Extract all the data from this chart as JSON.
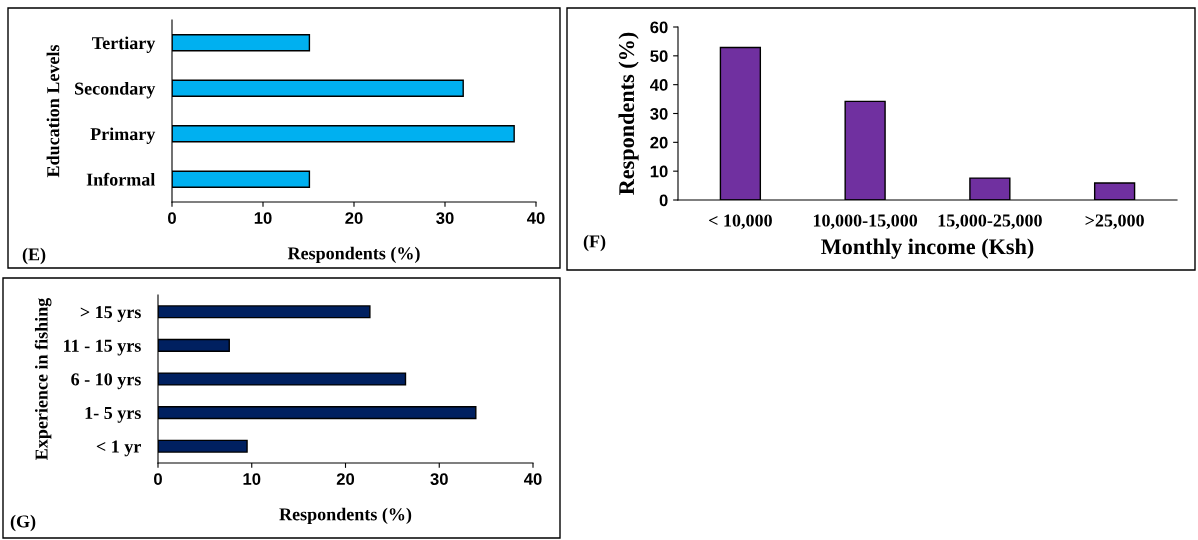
{
  "chart_data": [
    {
      "type": "bar",
      "orientation": "horizontal",
      "categories": [
        "Tertiary",
        "Secondary",
        "Primary",
        "Informal"
      ],
      "values": [
        15.1,
        32.0,
        37.6,
        15.1
      ],
      "color": "#00b0f0",
      "xlim": [
        0,
        40
      ],
      "xticks": [
        0,
        10,
        20,
        30,
        40
      ],
      "xlabel": "Respondents (%)",
      "ylabel": "Education Levels",
      "annotations": [
        "(E)"
      ],
      "grid": false,
      "legend": false
    },
    {
      "type": "bar",
      "categories": [
        "< 10,000",
        "10,000-15,000",
        "15,000-25,000",
        ">25,000"
      ],
      "values": [
        52.9,
        34.2,
        7.6,
        5.9
      ],
      "color": "#7030a0",
      "ylim": [
        0,
        60
      ],
      "yticks": [
        0,
        10,
        20,
        30,
        40,
        50,
        60
      ],
      "xlabel": "Monthly income (Ksh)",
      "ylabel": "Respondents (%)",
      "annotations": [
        "(F)"
      ],
      "grid": false,
      "legend": false
    },
    {
      "type": "bar",
      "orientation": "horizontal",
      "categories": [
        "> 15 yrs",
        "11 - 15 yrs",
        "6 - 10 yrs",
        "1- 5 yrs",
        "< 1 yr"
      ],
      "values": [
        22.6,
        7.6,
        26.4,
        33.9,
        9.5
      ],
      "color": "#002060",
      "xlim": [
        0,
        40
      ],
      "xticks": [
        0,
        10,
        20,
        30,
        40
      ],
      "xlabel": "Respondents (%)",
      "ylabel": "Experience in fishing",
      "annotations": [
        "(G)"
      ],
      "grid": false,
      "legend": false
    }
  ]
}
